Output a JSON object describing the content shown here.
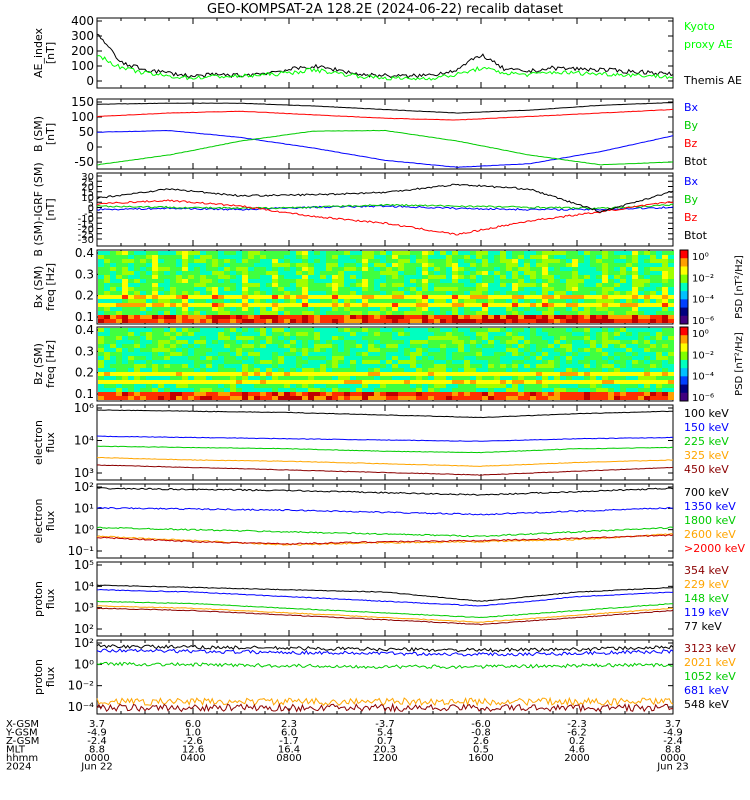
{
  "title": "GEO-KOMPSAT-2A 128.2E (2024-06-22) recalib dataset",
  "colors": {
    "black": "#000000",
    "blue": "#0000ff",
    "green": "#00cc00",
    "red": "#ff0000",
    "orange": "#ffa500",
    "darkred": "#8b0000",
    "bright_green": "#00ff00"
  },
  "panels": [
    {
      "id": "ae",
      "ylabel": [
        "AE_index",
        "[nT]"
      ],
      "ylim": [
        0,
        400
      ],
      "ticks": [
        "400",
        "300",
        "200",
        "100",
        "0"
      ],
      "legend": [
        {
          "text": "Kyoto",
          "color": "#00ff00"
        },
        {
          "text": "proxy AE",
          "color": "#00ff00"
        },
        {
          "text": "",
          "color": "#000"
        },
        {
          "text": "Themis AE",
          "color": "#000000"
        }
      ]
    },
    {
      "id": "bsm",
      "ylabel": [
        "B (SM)",
        "[nT]"
      ],
      "ylim": [
        -60,
        140
      ],
      "ticks": [
        "150",
        "100",
        "50",
        "0",
        "-50"
      ],
      "legend": [
        {
          "text": "Bx",
          "color": "#0000ff"
        },
        {
          "text": "By",
          "color": "#00cc00"
        },
        {
          "text": "Bz",
          "color": "#ff0000"
        },
        {
          "text": "Btot",
          "color": "#000000"
        }
      ]
    },
    {
      "id": "bdiff",
      "ylabel": [
        "B (SM)-IGRF (SM)",
        "[nT]"
      ],
      "ylim": [
        -30,
        30
      ],
      "ticks": [
        "30",
        "25",
        "20",
        "15",
        "10",
        "5",
        "0",
        "-5",
        "-10",
        "-15",
        "-20",
        "-25",
        "-30"
      ],
      "legend": [
        {
          "text": "Bx",
          "color": "#0000ff"
        },
        {
          "text": "By",
          "color": "#00cc00"
        },
        {
          "text": "Bz",
          "color": "#ff0000"
        },
        {
          "text": "Btot",
          "color": "#000000"
        }
      ]
    },
    {
      "id": "bxspec",
      "ylabel": [
        "Bx (SM)",
        "freq [Hz]"
      ],
      "ticks": [
        "0.4",
        "0.3",
        "0.2",
        "0.1"
      ],
      "cbar": {
        "labels": [
          "10⁰",
          "10⁻²",
          "10⁻⁴",
          "10⁻⁶"
        ],
        "title": "PSD [nT²/Hz]"
      }
    },
    {
      "id": "bzspec",
      "ylabel": [
        "Bz (SM)",
        "freq [Hz]"
      ],
      "ticks": [
        "0.4",
        "0.3",
        "0.2",
        "0.1"
      ],
      "cbar": {
        "labels": [
          "10⁰",
          "10⁻²",
          "10⁻⁴",
          "10⁻⁶"
        ],
        "title": "PSD [nT²/Hz]"
      }
    },
    {
      "id": "ef1",
      "ylabel": [
        "electron",
        "flux"
      ],
      "ticks": [
        "10⁶",
        "10⁴",
        "10³"
      ],
      "legend": [
        {
          "text": "100 keV",
          "color": "#000000"
        },
        {
          "text": "150 keV",
          "color": "#0000ff"
        },
        {
          "text": "225 keV",
          "color": "#00cc00"
        },
        {
          "text": "325 keV",
          "color": "#ffa500"
        },
        {
          "text": "450 keV",
          "color": "#8b0000"
        }
      ]
    },
    {
      "id": "ef2",
      "ylabel": [
        "electron",
        "flux"
      ],
      "ticks": [
        "10²",
        "10¹",
        "10⁰",
        "10⁻¹"
      ],
      "legend": [
        {
          "text": "700 keV",
          "color": "#000000"
        },
        {
          "text": "1350 keV",
          "color": "#0000ff"
        },
        {
          "text": "1800 keV",
          "color": "#00cc00"
        },
        {
          "text": "2600 keV",
          "color": "#ffa500"
        },
        {
          "text": ">2000 keV",
          "color": "#ff0000"
        }
      ]
    },
    {
      "id": "pf1",
      "ylabel": [
        "proton",
        "flux"
      ],
      "ticks": [
        "10⁵",
        "10⁴",
        "10³",
        "10²"
      ],
      "legend": [
        {
          "text": "354 keV",
          "color": "#8b0000"
        },
        {
          "text": "229 keV",
          "color": "#ffa500"
        },
        {
          "text": "148 keV",
          "color": "#00cc00"
        },
        {
          "text": "119 keV",
          "color": "#0000ff"
        },
        {
          "text": "77 keV",
          "color": "#000000"
        }
      ]
    },
    {
      "id": "pf2",
      "ylabel": [
        "proton",
        "flux"
      ],
      "ticks": [
        "10²",
        "10⁰",
        "10⁻²",
        "10⁻⁴"
      ],
      "legend": [
        {
          "text": "3123 keV",
          "color": "#8b0000"
        },
        {
          "text": "2021 keV",
          "color": "#ffa500"
        },
        {
          "text": "1052 keV",
          "color": "#00cc00"
        },
        {
          "text": "681 keV",
          "color": "#0000ff"
        },
        {
          "text": "548 keV",
          "color": "#000000"
        }
      ]
    }
  ],
  "footer": {
    "row_labels": [
      "X-GSM",
      "Y-GSM",
      "Z-GSM",
      "MLT",
      "hhmm",
      "2024"
    ],
    "columns": [
      [
        "3.7",
        "-4.9",
        "-2.4",
        "8.8",
        "0000",
        "Jun 22"
      ],
      [
        "6.0",
        "1.0",
        "-2.6",
        "12.6",
        "0400",
        ""
      ],
      [
        "2.3",
        "6.0",
        "-1.7",
        "16.4",
        "0800",
        ""
      ],
      [
        "-3.7",
        "5.4",
        "0.7",
        "20.3",
        "1200",
        ""
      ],
      [
        "-6.0",
        "-0.8",
        "2.6",
        "0.5",
        "1600",
        ""
      ],
      [
        "-2.3",
        "-6.2",
        "0.2",
        "4.6",
        "2000",
        ""
      ],
      [
        "3.7",
        "-4.9",
        "-2.4",
        "8.8",
        "0000",
        "Jun 23"
      ]
    ]
  },
  "chart_data": [
    {
      "type": "line",
      "title": "AE_index",
      "x_hours": [
        0,
        1,
        2,
        3,
        4,
        5,
        6,
        7,
        8,
        9,
        10,
        11,
        12,
        13,
        14,
        15,
        16,
        17,
        18,
        19,
        20,
        21,
        22,
        23,
        24
      ],
      "series": [
        {
          "name": "Themis AE",
          "values": [
            330,
            150,
            110,
            90,
            70,
            80,
            75,
            90,
            110,
            130,
            110,
            80,
            75,
            70,
            80,
            110,
            200,
            110,
            100,
            120,
            115,
            110,
            100,
            95,
            80
          ]
        },
        {
          "name": "Kyoto proxy AE",
          "values": [
            200,
            120,
            90,
            70,
            60,
            70,
            70,
            80,
            90,
            110,
            90,
            70,
            60,
            55,
            60,
            80,
            120,
            90,
            80,
            95,
            90,
            85,
            80,
            75,
            65
          ]
        }
      ]
    },
    {
      "type": "line",
      "title": "B (SM)",
      "x_hours": [
        0,
        3,
        6,
        9,
        12,
        15,
        18,
        21,
        24
      ],
      "series": [
        {
          "name": "Bx",
          "values": [
            45,
            50,
            30,
            0,
            -35,
            -55,
            -45,
            -10,
            35
          ]
        },
        {
          "name": "By",
          "values": [
            -48,
            -20,
            20,
            48,
            50,
            20,
            -20,
            -48,
            -40
          ]
        },
        {
          "name": "Bz",
          "values": [
            90,
            100,
            105,
            95,
            85,
            80,
            90,
            100,
            110
          ]
        },
        {
          "name": "Btot",
          "values": [
            125,
            128,
            128,
            120,
            110,
            100,
            108,
            122,
            130
          ]
        }
      ]
    },
    {
      "type": "line",
      "title": "B (SM)-IGRF (SM)",
      "x_hours": [
        0,
        3,
        6,
        9,
        12,
        15,
        18,
        21,
        24
      ],
      "series": [
        {
          "name": "Bx",
          "values": [
            0,
            1,
            0,
            2,
            3,
            1,
            0,
            0,
            2
          ]
        },
        {
          "name": "By",
          "values": [
            3,
            2,
            1,
            2,
            4,
            3,
            2,
            1,
            4
          ]
        },
        {
          "name": "Bz",
          "values": [
            5,
            8,
            3,
            -6,
            -12,
            -22,
            -10,
            -2,
            7
          ]
        },
        {
          "name": "Btot",
          "values": [
            10,
            18,
            12,
            13,
            15,
            22,
            18,
            -2,
            16
          ]
        }
      ]
    },
    {
      "type": "heatmap",
      "title": "Bx (SM) PSD"
    },
    {
      "type": "heatmap",
      "title": "Bz (SM) PSD"
    },
    {
      "type": "line",
      "title": "electron flux (low)",
      "x_hours": [
        0,
        4,
        8,
        12,
        16,
        20,
        24
      ],
      "series": [
        {
          "name": "100 keV",
          "values": [
            6.6,
            6.5,
            6.4,
            6.2,
            6.0,
            6.3,
            6.5
          ]
        },
        {
          "name": "150 keV",
          "values": [
            4.5,
            4.4,
            4.3,
            4.2,
            4.1,
            4.3,
            4.4
          ]
        },
        {
          "name": "225 keV",
          "values": [
            3.7,
            3.6,
            3.5,
            3.3,
            3.2,
            3.5,
            3.6
          ]
        },
        {
          "name": "325 keV",
          "values": [
            2.8,
            2.6,
            2.5,
            2.3,
            2.1,
            2.4,
            2.6
          ]
        },
        {
          "name": "450 keV",
          "values": [
            2.2,
            2.0,
            1.8,
            1.6,
            1.4,
            1.7,
            2.0
          ]
        }
      ]
    },
    {
      "type": "line",
      "title": "electron flux (high)",
      "x_hours": [
        0,
        4,
        8,
        12,
        16,
        20,
        24
      ],
      "series": [
        {
          "name": "700 keV",
          "values": [
            2.0,
            1.95,
            1.9,
            1.8,
            1.7,
            1.85,
            2.0
          ]
        },
        {
          "name": "1350 keV",
          "values": [
            1.1,
            1.05,
            1.0,
            0.9,
            0.8,
            0.95,
            1.1
          ]
        },
        {
          "name": "1800 keV",
          "values": [
            0.2,
            0.1,
            0.0,
            -0.1,
            -0.2,
            0.0,
            0.2
          ]
        },
        {
          "name": "2600 keV",
          "values": [
            -0.2,
            -0.4,
            -0.6,
            -0.5,
            -0.45,
            -0.35,
            -0.1
          ]
        },
        {
          "name": ">2000 keV",
          "values": [
            -0.25,
            -0.45,
            -0.55,
            -0.45,
            -0.4,
            -0.3,
            -0.15
          ]
        }
      ]
    },
    {
      "type": "line",
      "title": "proton flux (low)",
      "x_hours": [
        0,
        4,
        8,
        12,
        16,
        20,
        24
      ],
      "series": [
        {
          "name": "77 keV",
          "values": [
            4.2,
            4.1,
            4.0,
            3.9,
            3.5,
            3.9,
            4.1
          ]
        },
        {
          "name": "119 keV",
          "values": [
            4.0,
            3.9,
            3.7,
            3.5,
            3.3,
            3.7,
            3.9
          ]
        },
        {
          "name": "148 keV",
          "values": [
            3.5,
            3.4,
            3.2,
            3.0,
            2.8,
            3.1,
            3.4
          ]
        },
        {
          "name": "229 keV",
          "values": [
            3.3,
            3.2,
            3.0,
            2.8,
            2.6,
            2.9,
            3.2
          ]
        },
        {
          "name": "354 keV",
          "values": [
            3.2,
            3.1,
            2.9,
            2.7,
            2.5,
            2.8,
            3.1
          ]
        }
      ]
    },
    {
      "type": "line",
      "title": "proton flux (high)",
      "x_hours": [
        0,
        4,
        8,
        12,
        16,
        20,
        24
      ],
      "series": [
        {
          "name": "548 keV",
          "values": [
            2.2,
            2.1,
            2.0,
            1.9,
            1.8,
            1.9,
            2.1
          ]
        },
        {
          "name": "681 keV",
          "values": [
            1.8,
            1.7,
            1.6,
            1.5,
            1.4,
            1.5,
            1.7
          ]
        },
        {
          "name": "1052 keV",
          "values": [
            0.5,
            0.4,
            0.3,
            0.2,
            0.2,
            0.3,
            0.4
          ]
        },
        {
          "name": "2021 keV",
          "values": [
            -3.2,
            -3.2,
            -3.2,
            -3.2,
            -3.2,
            -3.2,
            -3.2
          ]
        },
        {
          "name": "3123 keV",
          "values": [
            -3.8,
            -3.8,
            -3.8,
            -3.8,
            -3.8,
            -3.8,
            -3.8
          ]
        }
      ]
    }
  ]
}
